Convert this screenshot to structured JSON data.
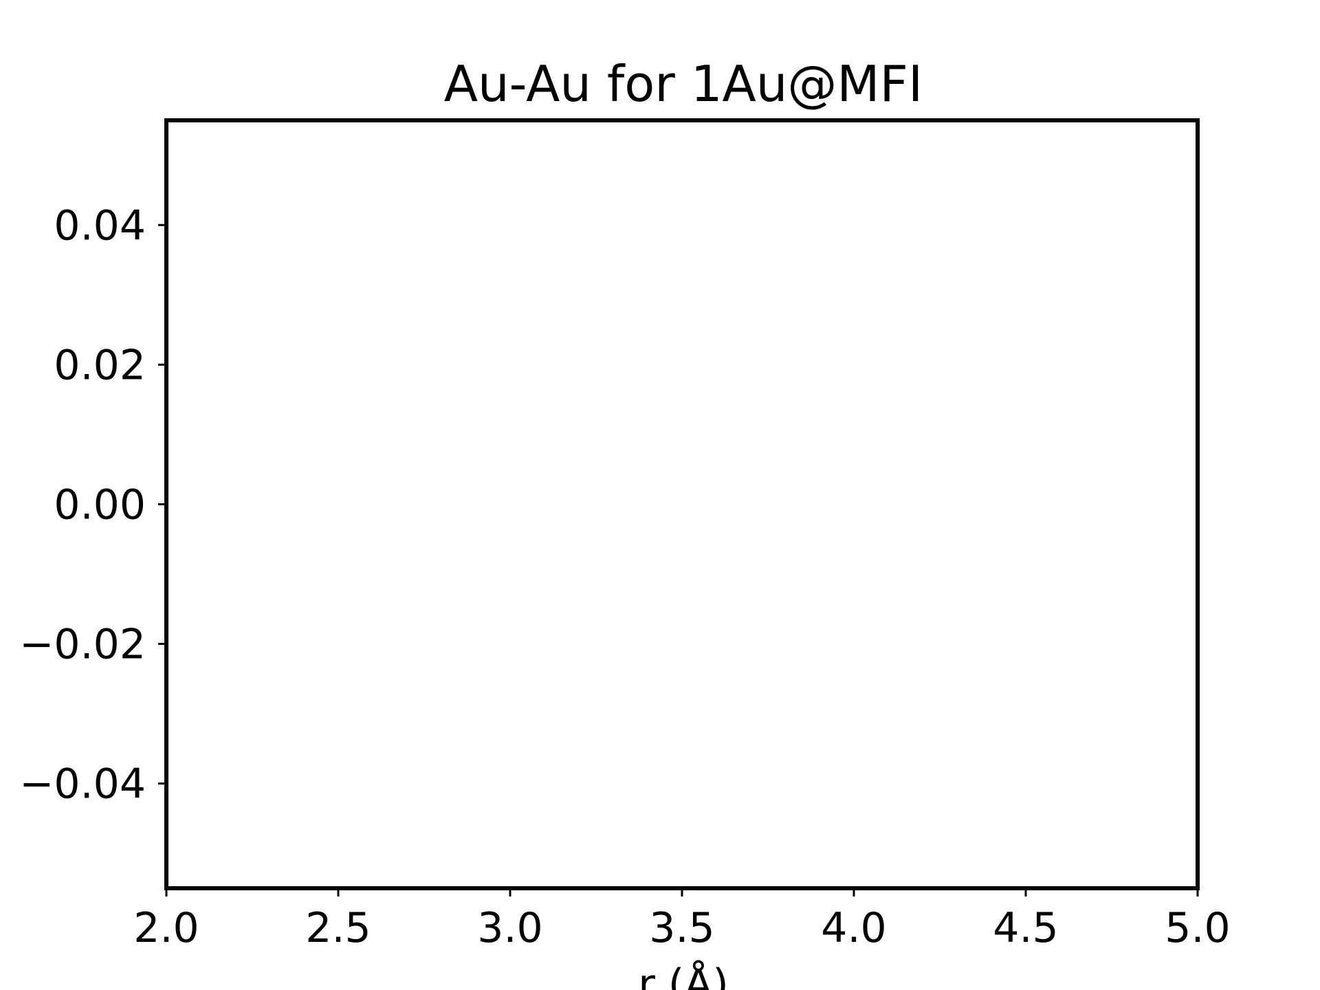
{
  "chart_data": {
    "type": "line",
    "title": "Au-Au for 1Au@MFI",
    "xlabel": "r (Å)",
    "ylabel": "",
    "xlim": [
      2.0,
      5.0
    ],
    "ylim": [
      -0.055,
      0.055
    ],
    "x_ticks": [
      2.0,
      2.5,
      3.0,
      3.5,
      4.0,
      4.5,
      5.0
    ],
    "x_tick_labels": [
      "2.0",
      "2.5",
      "3.0",
      "3.5",
      "4.0",
      "4.5",
      "5.0"
    ],
    "y_ticks": [
      0.04,
      0.02,
      0.0,
      -0.02,
      -0.04
    ],
    "y_tick_labels": [
      "0.04",
      "0.02",
      "0.00",
      "−0.02",
      "−0.04"
    ],
    "grid": false,
    "series": [],
    "colors": {
      "axes": "#000000",
      "background": "#ffffff"
    }
  }
}
